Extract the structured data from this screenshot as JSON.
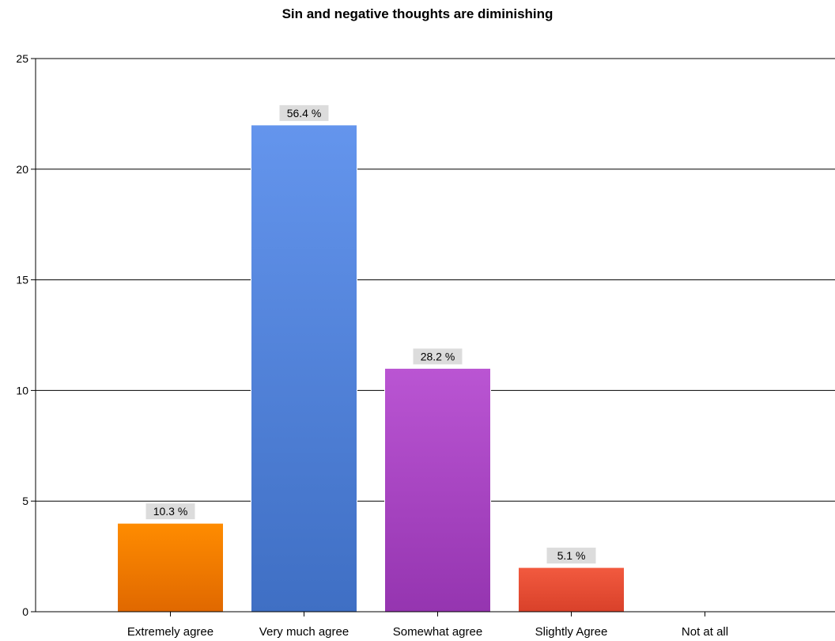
{
  "chart_data": {
    "type": "bar",
    "title": "Sin and negative thoughts are diminishing",
    "xlabel": "",
    "ylabel": "",
    "categories": [
      "Extremely agree",
      "Very much agree",
      "Somewhat agree",
      "Slightly Agree",
      "Not at all"
    ],
    "values": [
      4,
      22,
      11,
      2,
      0
    ],
    "data_labels": [
      "10.3 %",
      "56.4 %",
      "28.2 %",
      "5.1 %",
      ""
    ],
    "ylim": [
      0,
      25
    ],
    "yticks": [
      0,
      5,
      10,
      15,
      20,
      25
    ],
    "grid": true,
    "legend": "none",
    "colors": [
      {
        "top": "#ff8c00",
        "bottom": "#e06800"
      },
      {
        "top": "#6495ed",
        "bottom": "#3f6fc4"
      },
      {
        "top": "#ba55d3",
        "bottom": "#9535b0"
      },
      {
        "top": "#f25a3f",
        "bottom": "#d9412a"
      },
      {
        "top": "#999999",
        "bottom": "#777777"
      }
    ],
    "label_background": "#dcdcdc"
  }
}
